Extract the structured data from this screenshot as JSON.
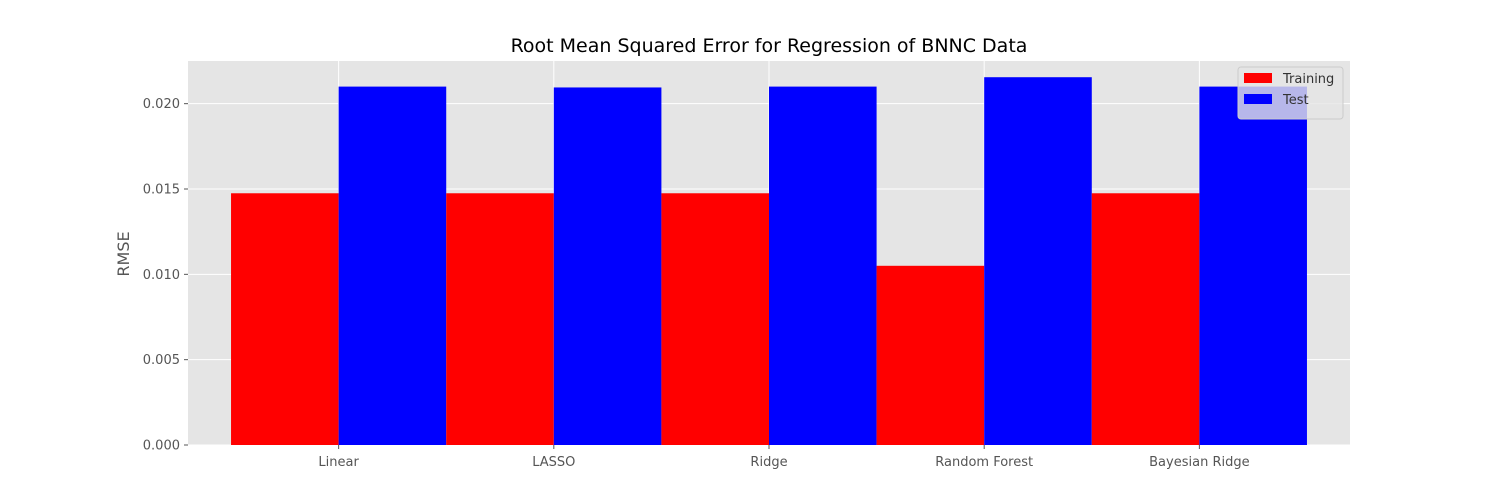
{
  "chart_data": {
    "type": "bar",
    "title": "Root Mean Squared Error for Regression of BNNC Data",
    "xlabel": "",
    "ylabel": "RMSE",
    "categories": [
      "Linear",
      "LASSO",
      "Ridge",
      "Random Forest",
      "Bayesian Ridge"
    ],
    "series": [
      {
        "name": "Training",
        "color": "#ff0000",
        "values": [
          0.01475,
          0.01475,
          0.01475,
          0.0105,
          0.01475
        ]
      },
      {
        "name": "Test",
        "color": "#0000ff",
        "values": [
          0.021,
          0.02095,
          0.021,
          0.02155,
          0.021
        ]
      }
    ],
    "ylim": [
      0,
      0.0225
    ],
    "yticks": [
      "0.000",
      "0.005",
      "0.010",
      "0.015",
      "0.020"
    ],
    "grid": true,
    "legend_position": "top-right",
    "background_color": "#e5e5e5"
  }
}
